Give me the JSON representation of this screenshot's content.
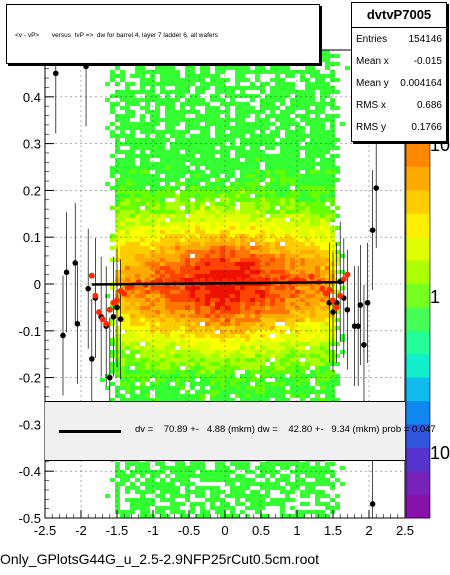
{
  "title": "<v - vP>       versus  tvP =>  dw for barrel 4, layer 7 ladder 6, all wafers",
  "stats": {
    "name": "dvtvP7005",
    "rows": [
      {
        "label": "Entries",
        "value": "154146"
      },
      {
        "label": "Mean x",
        "value": "-0.015"
      },
      {
        "label": "Mean y",
        "value": "0.004164"
      },
      {
        "label": "RMS x",
        "value": "0.686"
      },
      {
        "label": "RMS y",
        "value": "0.1766"
      }
    ]
  },
  "fit_text": "dv =    70.89 +-   4.88 (mkm) dw =    42.80 +-   9.34 (mkm) prob = 0.047",
  "footer": "Only_GPlotsG44G_u_2.5-2.9NFP25rCut0.5cm.root",
  "colors": {
    "profile_red": "#ff2a00",
    "fit_line": "#000000",
    "palette": [
      "#ffffff",
      "#00ff66",
      "#ffff00",
      "#ff8800",
      "#ff0000",
      "#aa0000"
    ]
  },
  "chart_data": {
    "type": "heatmap",
    "xlim": [
      -2.5,
      2.5
    ],
    "ylim": [
      -0.5,
      0.5
    ],
    "x_ticks": [
      "-2.5",
      "-2",
      "-1.5",
      "-1",
      "-0.5",
      "0",
      "0.5",
      "1",
      "1.5",
      "2",
      "2.5"
    ],
    "y_ticks": [
      "-0.5",
      "-0.4",
      "-0.3",
      "-0.2",
      "-0.1",
      "0",
      "0.1",
      "0.2",
      "0.3",
      "0.4"
    ],
    "z_labels": [
      "10",
      "1",
      "10"
    ],
    "fit_line": {
      "x": [
        -1.85,
        1.65
      ],
      "y": [
        -0.001,
        0.004
      ]
    },
    "profile_points": [
      {
        "x": -1.85,
        "y": 0.018
      },
      {
        "x": -1.8,
        "y": -0.025
      },
      {
        "x": -1.75,
        "y": -0.06
      },
      {
        "x": -1.7,
        "y": -0.075
      },
      {
        "x": -1.65,
        "y": -0.085
      },
      {
        "x": -1.6,
        "y": -0.055
      },
      {
        "x": -1.55,
        "y": -0.04
      },
      {
        "x": -1.5,
        "y": -0.035
      },
      {
        "x": -1.45,
        "y": -0.015
      },
      {
        "x": -1.4,
        "y": -0.02
      },
      {
        "x": -1.35,
        "y": -0.008
      },
      {
        "x": -1.3,
        "y": -0.005
      },
      {
        "x": -1.2,
        "y": 0.004
      },
      {
        "x": -1.1,
        "y": -0.002
      },
      {
        "x": -1.0,
        "y": 0.003
      },
      {
        "x": -0.9,
        "y": 0.006
      },
      {
        "x": -0.8,
        "y": -0.003
      },
      {
        "x": -0.7,
        "y": 0.002
      },
      {
        "x": -0.6,
        "y": 0.005
      },
      {
        "x": -0.5,
        "y": 0.0
      },
      {
        "x": -0.4,
        "y": 0.006
      },
      {
        "x": -0.3,
        "y": 0.003
      },
      {
        "x": -0.2,
        "y": 0.008
      },
      {
        "x": -0.1,
        "y": 0.002
      },
      {
        "x": 0.0,
        "y": 0.006
      },
      {
        "x": 0.1,
        "y": 0.004
      },
      {
        "x": 0.2,
        "y": 0.009
      },
      {
        "x": 0.3,
        "y": 0.005
      },
      {
        "x": 0.4,
        "y": 0.006
      },
      {
        "x": 0.5,
        "y": 0.01
      },
      {
        "x": 0.6,
        "y": 0.004
      },
      {
        "x": 0.7,
        "y": 0.008
      },
      {
        "x": 0.8,
        "y": 0.014
      },
      {
        "x": 0.9,
        "y": 0.003
      },
      {
        "x": 1.0,
        "y": 0.01
      },
      {
        "x": 1.1,
        "y": 0.006
      },
      {
        "x": 1.2,
        "y": 0.016
      },
      {
        "x": 1.3,
        "y": 0.004
      },
      {
        "x": 1.35,
        "y": -0.01
      },
      {
        "x": 1.4,
        "y": -0.02
      },
      {
        "x": 1.45,
        "y": -0.012
      },
      {
        "x": 1.5,
        "y": -0.035
      },
      {
        "x": 1.55,
        "y": -0.05
      },
      {
        "x": 1.6,
        "y": -0.025
      },
      {
        "x": 1.65,
        "y": 0.01
      },
      {
        "x": 1.7,
        "y": 0.02
      }
    ],
    "sparse_points": [
      {
        "x": -2.35,
        "y": 0.45
      },
      {
        "x": -2.2,
        "y": 0.025
      },
      {
        "x": -2.25,
        "y": -0.11
      },
      {
        "x": -2.05,
        "y": -0.085
      },
      {
        "x": -2.08,
        "y": 0.045
      },
      {
        "x": -1.93,
        "y": 0.465
      },
      {
        "x": -1.9,
        "y": -0.01
      },
      {
        "x": -1.85,
        "y": -0.16
      },
      {
        "x": -1.8,
        "y": -0.03
      },
      {
        "x": -1.72,
        "y": -0.07
      },
      {
        "x": -1.65,
        "y": -0.09
      },
      {
        "x": -1.6,
        "y": -0.2
      },
      {
        "x": -1.55,
        "y": -0.07
      },
      {
        "x": -1.5,
        "y": -0.05
      },
      {
        "x": -1.45,
        "y": -0.075
      },
      {
        "x": 1.45,
        "y": -0.04
      },
      {
        "x": 1.5,
        "y": -0.06
      },
      {
        "x": 1.55,
        "y": -0.04
      },
      {
        "x": 1.6,
        "y": 0.005
      },
      {
        "x": 1.65,
        "y": -0.03
      },
      {
        "x": 1.7,
        "y": -0.055
      },
      {
        "x": 1.8,
        "y": -0.09
      },
      {
        "x": 1.85,
        "y": -0.09
      },
      {
        "x": 1.88,
        "y": -0.045
      },
      {
        "x": 1.93,
        "y": -0.13
      },
      {
        "x": 1.98,
        "y": -0.04
      },
      {
        "x": 2.05,
        "y": 0.115
      },
      {
        "x": 2.1,
        "y": 0.205
      },
      {
        "x": 2.05,
        "y": -0.47
      }
    ]
  }
}
